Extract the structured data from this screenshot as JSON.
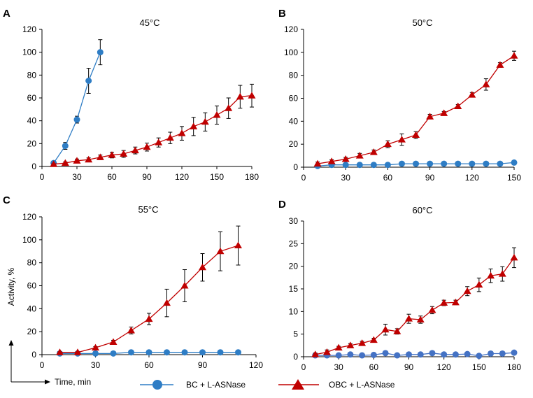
{
  "figure": {
    "ylabel": "Activity, %",
    "xlabel": "Time, min",
    "legend": [
      {
        "label": "BC + L-ASNase",
        "color": "#2e7dc5",
        "marker": "circle"
      },
      {
        "label": "OBC + L-ASNase",
        "color": "#c00000",
        "marker": "triangle"
      }
    ]
  },
  "chart_data": [
    {
      "type": "line",
      "panel": "A",
      "title": "45°C",
      "xlim": [
        0,
        180
      ],
      "ylim": [
        0,
        120
      ],
      "xticks": [
        0,
        30,
        60,
        90,
        120,
        150,
        180
      ],
      "yticks": [
        0,
        20,
        40,
        60,
        80,
        100,
        120
      ],
      "series": [
        {
          "name": "BC + L-ASNase",
          "color": "#2e7dc5",
          "marker": "circle",
          "x": [
            10,
            20,
            30,
            40,
            50
          ],
          "y": [
            3,
            18,
            41,
            75,
            100
          ],
          "err": [
            1,
            3,
            3,
            11,
            11
          ]
        },
        {
          "name": "OBC + L-ASNase",
          "color": "#c00000",
          "marker": "triangle",
          "x": [
            10,
            20,
            30,
            40,
            50,
            60,
            70,
            80,
            90,
            100,
            110,
            120,
            130,
            140,
            150,
            160,
            170,
            180
          ],
          "y": [
            2,
            3,
            5,
            6,
            8,
            10,
            11,
            14,
            17,
            21,
            25,
            29,
            35,
            39,
            45,
            51,
            61,
            62
          ],
          "err": [
            0.5,
            1,
            1.5,
            1.5,
            2,
            2.5,
            3,
            3,
            3.5,
            4,
            5,
            6,
            8,
            8,
            8,
            9,
            10,
            10
          ]
        }
      ]
    },
    {
      "type": "line",
      "panel": "B",
      "title": "50°C",
      "xlim": [
        0,
        150
      ],
      "ylim": [
        0,
        120
      ],
      "xticks": [
        0,
        30,
        60,
        90,
        120,
        150
      ],
      "yticks": [
        0,
        20,
        40,
        60,
        80,
        100,
        120
      ],
      "series": [
        {
          "name": "BC + L-ASNase",
          "color": "#2e7dc5",
          "marker": "circle",
          "x": [
            10,
            20,
            30,
            40,
            50,
            60,
            70,
            80,
            90,
            100,
            110,
            120,
            130,
            140,
            150
          ],
          "y": [
            1,
            2,
            2,
            2,
            2,
            2,
            3,
            3,
            3,
            3,
            3,
            3,
            3,
            3,
            4
          ],
          "err": [
            0.5,
            0.5,
            0.5,
            0.5,
            0.5,
            0.5,
            0.5,
            0.5,
            0.5,
            0.5,
            0.5,
            0.5,
            0.5,
            0.5,
            0.5
          ]
        },
        {
          "name": "OBC + L-ASNase",
          "color": "#c00000",
          "marker": "triangle",
          "x": [
            10,
            20,
            30,
            40,
            50,
            60,
            70,
            80,
            90,
            100,
            110,
            120,
            130,
            140,
            150
          ],
          "y": [
            3,
            5,
            7,
            10,
            13,
            20,
            24,
            28,
            44,
            47,
            53,
            63,
            72,
            89,
            97
          ],
          "err": [
            1.5,
            1.5,
            1.5,
            2,
            2,
            3,
            5,
            3,
            2,
            1.5,
            1.5,
            2,
            5,
            2,
            4
          ]
        }
      ]
    },
    {
      "type": "line",
      "panel": "C",
      "title": "55°C",
      "xlim": [
        0,
        120
      ],
      "ylim": [
        0,
        120
      ],
      "xticks": [
        0,
        30,
        60,
        90,
        120
      ],
      "yticks": [
        0,
        20,
        40,
        60,
        80,
        100,
        120
      ],
      "series": [
        {
          "name": "BC + L-ASNase",
          "color": "#2e7dc5",
          "marker": "circle",
          "x": [
            10,
            20,
            30,
            40,
            50,
            60,
            70,
            80,
            90,
            100,
            110
          ],
          "y": [
            1,
            1,
            1,
            1,
            2,
            2,
            2,
            2,
            2,
            2,
            2
          ],
          "err": [
            0.5,
            0.5,
            0.5,
            0.5,
            0.5,
            0.5,
            0.5,
            0.5,
            0.5,
            0.5,
            0.5
          ]
        },
        {
          "name": "OBC + L-ASNase",
          "color": "#c00000",
          "marker": "triangle",
          "x": [
            10,
            20,
            30,
            40,
            50,
            60,
            70,
            80,
            90,
            100,
            110
          ],
          "y": [
            2,
            2,
            6,
            11,
            21,
            31,
            45,
            60,
            76,
            90,
            95
          ],
          "err": [
            0.5,
            0.5,
            1,
            1.5,
            3,
            5,
            12,
            14,
            12,
            17,
            17
          ]
        }
      ]
    },
    {
      "type": "line",
      "panel": "D",
      "title": "60°C",
      "xlim": [
        0,
        180
      ],
      "ylim": [
        0,
        30
      ],
      "xticks": [
        0,
        30,
        60,
        90,
        120,
        150,
        180
      ],
      "yticks": [
        0,
        5,
        10,
        15,
        20,
        25,
        30
      ],
      "series": [
        {
          "name": "BC + L-ASNase",
          "color": "#4472c4",
          "marker": "circle",
          "x": [
            10,
            20,
            30,
            40,
            50,
            60,
            70,
            80,
            90,
            100,
            110,
            120,
            130,
            140,
            150,
            160,
            170,
            180
          ],
          "y": [
            0.3,
            0.3,
            0.3,
            0.5,
            0.3,
            0.4,
            0.8,
            0.3,
            0.5,
            0.5,
            0.8,
            0.5,
            0.5,
            0.6,
            0.2,
            0.7,
            0.7,
            0.9
          ],
          "err": [
            0.1,
            0.1,
            0.1,
            0.1,
            0.1,
            0.1,
            0.1,
            0.1,
            0.1,
            0.1,
            0.1,
            0.1,
            0.1,
            0.1,
            0.1,
            0.1,
            0.1,
            0.1
          ]
        },
        {
          "name": "OBC + L-ASNase",
          "color": "#c00000",
          "marker": "triangle",
          "x": [
            10,
            20,
            30,
            40,
            50,
            60,
            70,
            80,
            90,
            100,
            110,
            120,
            130,
            140,
            150,
            160,
            170,
            180
          ],
          "y": [
            0.5,
            1,
            2,
            2.5,
            3,
            3.7,
            6,
            5.6,
            8.4,
            8.2,
            10.3,
            11.9,
            12,
            14.5,
            15.9,
            17.9,
            18.3,
            21.9
          ],
          "err": [
            0.3,
            0.5,
            0.3,
            0.4,
            0.4,
            0.4,
            1.2,
            0.6,
            1,
            0.8,
            0.8,
            0.6,
            0.5,
            1,
            1.5,
            1.5,
            1.6,
            2.2
          ]
        }
      ]
    }
  ]
}
